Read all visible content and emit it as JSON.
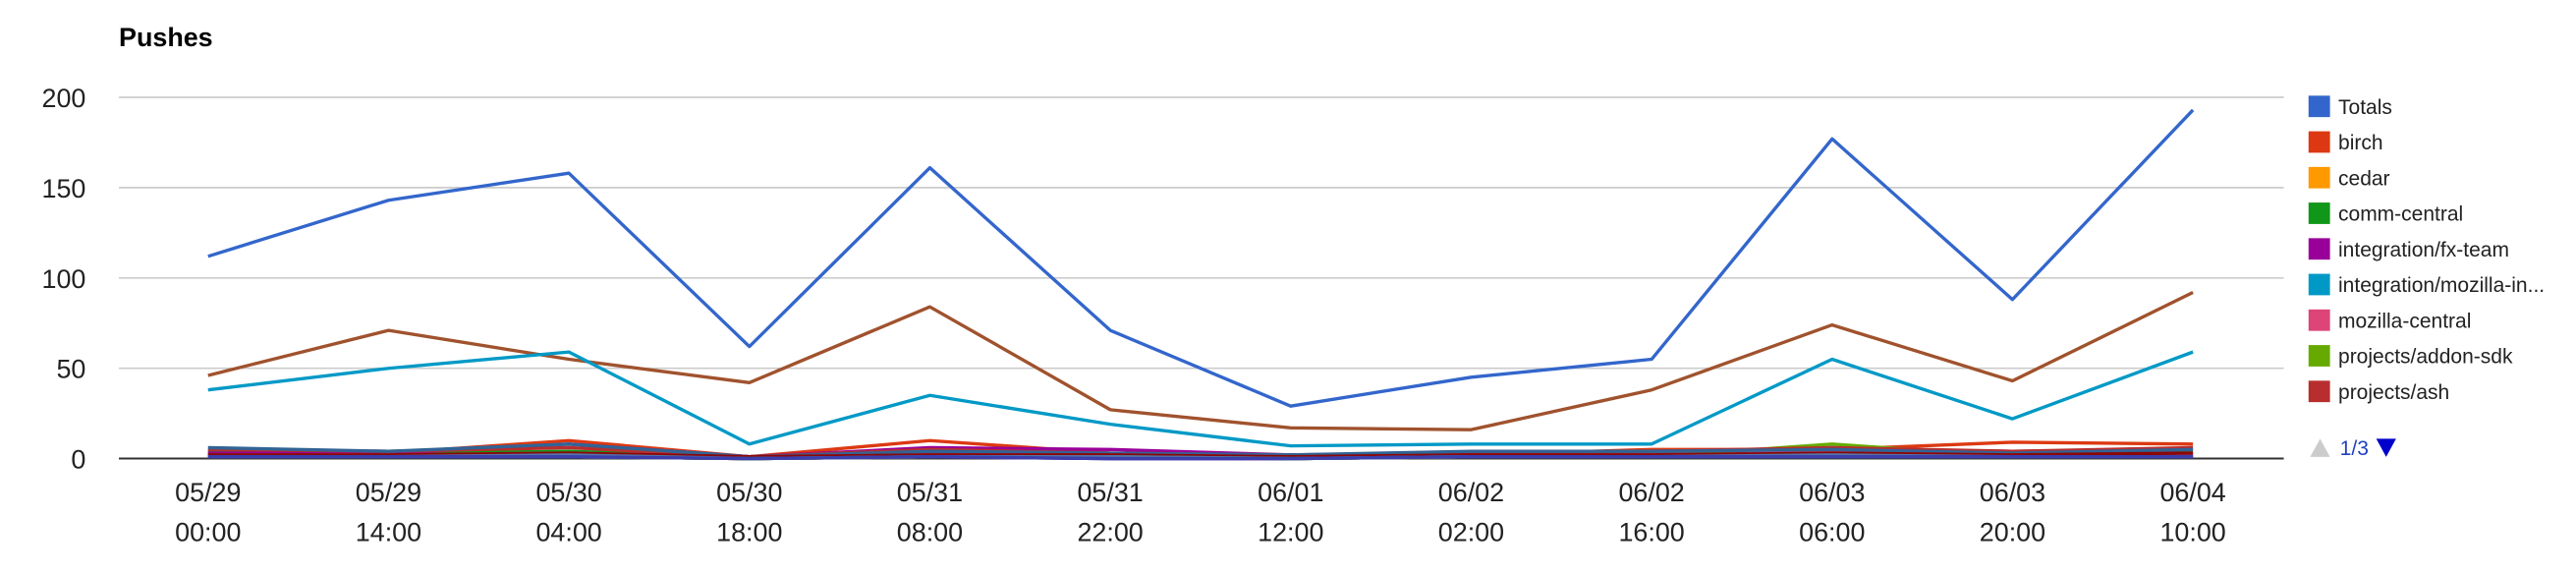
{
  "chart_data": {
    "type": "line",
    "title": "Pushes",
    "x": [
      "05/29 00:00",
      "05/29 14:00",
      "05/30 04:00",
      "05/30 18:00",
      "05/31 08:00",
      "05/31 22:00",
      "06/01 12:00",
      "06/02 02:00",
      "06/02 16:00",
      "06/03 06:00",
      "06/03 20:00",
      "06/04 10:00"
    ],
    "x_tick_lines": [
      [
        "05/29",
        "00:00"
      ],
      [
        "05/29",
        "14:00"
      ],
      [
        "05/30",
        "04:00"
      ],
      [
        "05/30",
        "18:00"
      ],
      [
        "05/31",
        "08:00"
      ],
      [
        "05/31",
        "22:00"
      ],
      [
        "06/01",
        "12:00"
      ],
      [
        "06/02",
        "02:00"
      ],
      [
        "06/02",
        "16:00"
      ],
      [
        "06/03",
        "06:00"
      ],
      [
        "06/03",
        "20:00"
      ],
      [
        "06/04",
        "10:00"
      ]
    ],
    "yticks": [
      "0",
      "50",
      "100",
      "150",
      "200"
    ],
    "ylim": [
      0,
      200
    ],
    "grid": true,
    "legend_position": "right",
    "series": [
      {
        "name": "Totals",
        "color": "#3366cc",
        "values": [
          112,
          143,
          158,
          62,
          161,
          71,
          29,
          45,
          55,
          177,
          88,
          193
        ]
      },
      {
        "name": "birch",
        "color": "#dc3912",
        "values": [
          3,
          3,
          10,
          1,
          10,
          3,
          1,
          2,
          5,
          5,
          9,
          8
        ]
      },
      {
        "name": "cedar",
        "color": "#ff9900",
        "values": [
          2,
          2,
          3,
          1,
          3,
          1,
          1,
          1,
          2,
          3,
          2,
          2
        ]
      },
      {
        "name": "comm-central",
        "color": "#109618",
        "values": [
          4,
          3,
          4,
          1,
          3,
          2,
          1,
          2,
          2,
          6,
          3,
          4
        ]
      },
      {
        "name": "integration/fx-team",
        "color": "#990099",
        "values": [
          3,
          3,
          8,
          1,
          6,
          5,
          2,
          3,
          4,
          5,
          4,
          5
        ]
      },
      {
        "name": "integration/mozilla-in...",
        "color": "#0099c6",
        "values": [
          38,
          50,
          59,
          8,
          35,
          19,
          7,
          8,
          8,
          55,
          22,
          59
        ]
      },
      {
        "name": "mozilla-central",
        "color": "#dd4477",
        "values": [
          2,
          2,
          3,
          1,
          2,
          2,
          1,
          2,
          2,
          4,
          2,
          3
        ]
      },
      {
        "name": "projects/addon-sdk",
        "color": "#66aa00",
        "values": [
          1,
          1,
          1,
          0,
          1,
          1,
          0,
          1,
          1,
          8,
          1,
          2
        ]
      },
      {
        "name": "projects/ash",
        "color": "#b82e2e",
        "values": [
          5,
          4,
          6,
          1,
          5,
          3,
          2,
          3,
          4,
          6,
          4,
          6
        ]
      },
      {
        "name": "",
        "color": "#316395",
        "values": [
          6,
          4,
          8,
          1,
          4,
          3,
          2,
          4,
          4,
          5,
          3,
          5
        ]
      },
      {
        "name": "",
        "color": "#994499",
        "values": [
          2,
          2,
          2,
          1,
          2,
          2,
          1,
          1,
          2,
          3,
          2,
          2
        ]
      },
      {
        "name": "",
        "color": "#22aa99",
        "values": [
          1,
          1,
          1,
          0,
          1,
          1,
          0,
          1,
          1,
          2,
          1,
          1
        ]
      },
      {
        "name": "",
        "color": "#aaaa11",
        "values": [
          1,
          1,
          1,
          0,
          1,
          1,
          0,
          1,
          1,
          2,
          1,
          1
        ]
      },
      {
        "name": "",
        "color": "#6633cc",
        "values": [
          1,
          1,
          1,
          0,
          1,
          0,
          0,
          1,
          1,
          1,
          1,
          1
        ]
      },
      {
        "name": "",
        "color": "#e67300",
        "values": [
          1,
          1,
          1,
          0,
          1,
          1,
          0,
          1,
          1,
          1,
          1,
          1
        ]
      },
      {
        "name": "",
        "color": "#8b0707",
        "values": [
          2,
          2,
          3,
          1,
          2,
          2,
          1,
          2,
          2,
          3,
          2,
          3
        ]
      },
      {
        "name": "",
        "color": "#651067",
        "values": [
          1,
          1,
          1,
          0,
          1,
          0,
          0,
          1,
          1,
          1,
          1,
          1
        ]
      },
      {
        "name": "",
        "color": "#329262",
        "values": [
          1,
          1,
          1,
          0,
          1,
          1,
          0,
          1,
          1,
          1,
          1,
          1
        ]
      },
      {
        "name": "",
        "color": "#5574a6",
        "values": [
          1,
          1,
          2,
          0,
          1,
          1,
          0,
          1,
          1,
          2,
          1,
          1
        ]
      },
      {
        "name": "",
        "color": "#3b3eac",
        "values": [
          1,
          1,
          1,
          0,
          1,
          0,
          0,
          1,
          1,
          1,
          1,
          1
        ]
      },
      {
        "name": "",
        "color": "#a0522d",
        "values": [
          46,
          71,
          55,
          42,
          84,
          27,
          17,
          16,
          38,
          74,
          43,
          92
        ]
      }
    ],
    "legend_visible": [
      "Totals",
      "birch",
      "cedar",
      "comm-central",
      "integration/fx-team",
      "integration/mozilla-in...",
      "mozilla-central",
      "projects/addon-sdk",
      "projects/ash"
    ]
  },
  "legend_pager": {
    "page_label": "1/3",
    "prev_icon": "triangle-up-icon",
    "next_icon": "triangle-down-icon",
    "prev_color": "#cccccc",
    "next_color": "#0000cc"
  }
}
